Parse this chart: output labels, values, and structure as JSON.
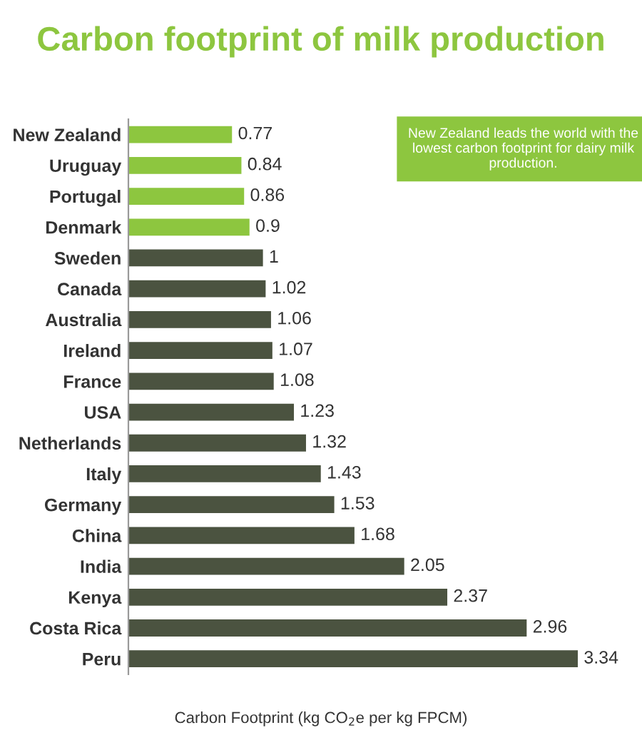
{
  "chart_data": {
    "type": "bar",
    "orientation": "horizontal",
    "title": "Carbon footprint of milk production",
    "xlabel": "Carbon Footprint (kg CO$_{2}$e per kg FPCM)",
    "categories": [
      "New Zealand",
      "Uruguay",
      "Portugal",
      "Denmark",
      "Sweden",
      "Canada",
      "Australia",
      "Ireland",
      "France",
      "USA",
      "Netherlands",
      "Italy",
      "Germany",
      "China",
      "India",
      "Kenya",
      "Costa Rica",
      "Peru"
    ],
    "values": [
      0.77,
      0.84,
      0.86,
      0.9,
      1,
      1.02,
      1.06,
      1.07,
      1.08,
      1.23,
      1.32,
      1.43,
      1.53,
      1.68,
      2.05,
      2.37,
      2.96,
      3.34
    ],
    "colors": [
      "#8dc63f",
      "#8dc63f",
      "#8dc63f",
      "#8dc63f",
      "#4b5340",
      "#4b5340",
      "#4b5340",
      "#4b5340",
      "#4b5340",
      "#4b5340",
      "#4b5340",
      "#4b5340",
      "#4b5340",
      "#4b5340",
      "#4b5340",
      "#4b5340",
      "#4b5340",
      "#4b5340"
    ],
    "data_labels": true,
    "tick_labels": "y",
    "annotations": [
      "New Zealand leads the world with the lowest carbon footprint for dairy milk production."
    ]
  }
}
